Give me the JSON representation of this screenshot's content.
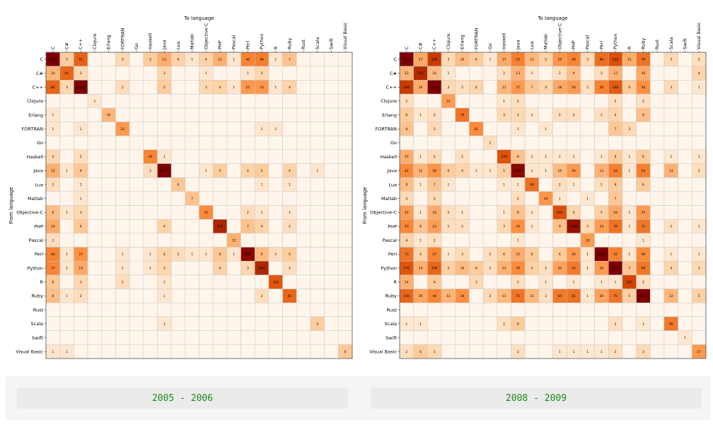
{
  "chart_data": [
    {
      "type": "heatmap",
      "title": "2005 - 2006",
      "xlabel": "To language",
      "ylabel": "From language",
      "colormap": [
        "#fff5eb",
        "#fdd0a2",
        "#fd8d3c",
        "#d94801",
        "#7f0000"
      ],
      "languages": [
        "C",
        "C#",
        "C++",
        "Clojure",
        "Erlang",
        "FORTRAN",
        "Go",
        "Haskell",
        "Java",
        "Lua",
        "Matlab",
        "Objective-C",
        "PHP",
        "Pascal",
        "Perl",
        "Python",
        "R",
        "Ruby",
        "Rust",
        "Scala",
        "Swift",
        "Visual Basic"
      ],
      "matrix": [
        [
          1000,
          5,
          91,
          0,
          0,
          3,
          0,
          5,
          13,
          4,
          1,
          4,
          12,
          1,
          40,
          46,
          1,
          7,
          0,
          0,
          0,
          0
        ],
        [
          10,
          81,
          3,
          0,
          0,
          0,
          0,
          0,
          3,
          0,
          0,
          1,
          0,
          0,
          1,
          3,
          0,
          0,
          0,
          0,
          0,
          0
        ],
        [
          86,
          3,
          1000,
          0,
          0,
          2,
          0,
          0,
          5,
          0,
          0,
          3,
          4,
          1,
          22,
          23,
          1,
          4,
          0,
          0,
          0,
          0
        ],
        [
          0,
          0,
          0,
          1,
          0,
          0,
          0,
          0,
          0,
          0,
          0,
          0,
          0,
          0,
          0,
          0,
          0,
          0,
          0,
          0,
          0,
          0
        ],
        [
          1,
          0,
          0,
          0,
          10,
          0,
          0,
          0,
          0,
          0,
          0,
          0,
          0,
          0,
          0,
          0,
          0,
          0,
          0,
          0,
          0,
          0
        ],
        [
          1,
          0,
          1,
          0,
          0,
          22,
          0,
          0,
          0,
          0,
          0,
          0,
          0,
          0,
          0,
          1,
          1,
          0,
          0,
          0,
          0,
          0
        ],
        [
          0,
          0,
          0,
          0,
          0,
          0,
          0,
          0,
          0,
          0,
          0,
          0,
          0,
          0,
          0,
          0,
          0,
          0,
          0,
          0,
          0,
          0
        ],
        [
          3,
          0,
          2,
          0,
          0,
          0,
          0,
          39,
          1,
          0,
          0,
          0,
          0,
          0,
          0,
          0,
          0,
          0,
          0,
          0,
          0,
          0
        ],
        [
          12,
          1,
          6,
          0,
          0,
          0,
          0,
          2,
          1000,
          0,
          0,
          1,
          5,
          0,
          4,
          5,
          0,
          4,
          0,
          1,
          0,
          0
        ],
        [
          2,
          0,
          1,
          0,
          0,
          0,
          0,
          0,
          0,
          6,
          0,
          0,
          0,
          0,
          0,
          1,
          0,
          1,
          0,
          0,
          0,
          0
        ],
        [
          0,
          0,
          1,
          0,
          0,
          0,
          0,
          0,
          0,
          0,
          7,
          0,
          0,
          0,
          0,
          0,
          0,
          0,
          0,
          0,
          0,
          0
        ],
        [
          8,
          1,
          3,
          0,
          0,
          0,
          0,
          0,
          0,
          0,
          0,
          32,
          0,
          0,
          2,
          1,
          0,
          1,
          0,
          0,
          0,
          0
        ],
        [
          14,
          0,
          6,
          0,
          0,
          0,
          0,
          0,
          4,
          0,
          0,
          0,
          400,
          0,
          7,
          4,
          0,
          2,
          0,
          0,
          0,
          0
        ],
        [
          2,
          0,
          0,
          0,
          0,
          0,
          0,
          0,
          0,
          0,
          0,
          0,
          0,
          12,
          0,
          0,
          0,
          0,
          0,
          0,
          0,
          0
        ],
        [
          40,
          1,
          27,
          0,
          0,
          1,
          0,
          1,
          4,
          2,
          1,
          1,
          6,
          1,
          800,
          9,
          2,
          5,
          0,
          0,
          0,
          0
        ],
        [
          37,
          1,
          14,
          0,
          0,
          1,
          0,
          1,
          3,
          0,
          0,
          0,
          4,
          0,
          3,
          400,
          0,
          2,
          0,
          0,
          0,
          0
        ],
        [
          6,
          0,
          3,
          0,
          0,
          2,
          0,
          0,
          1,
          0,
          0,
          0,
          0,
          0,
          0,
          0,
          122,
          0,
          0,
          0,
          0,
          0
        ],
        [
          8,
          1,
          2,
          0,
          0,
          0,
          0,
          0,
          1,
          0,
          0,
          0,
          0,
          0,
          0,
          2,
          0,
          83,
          0,
          0,
          0,
          0
        ],
        [
          0,
          0,
          0,
          0,
          0,
          0,
          0,
          0,
          0,
          0,
          0,
          0,
          0,
          0,
          0,
          0,
          0,
          0,
          0,
          0,
          0,
          0
        ],
        [
          0,
          0,
          0,
          0,
          0,
          0,
          0,
          0,
          1,
          0,
          0,
          0,
          0,
          0,
          0,
          0,
          0,
          0,
          0,
          5,
          0,
          0
        ],
        [
          0,
          0,
          0,
          0,
          0,
          0,
          0,
          0,
          0,
          0,
          0,
          0,
          0,
          0,
          0,
          0,
          0,
          0,
          0,
          0,
          0,
          0
        ],
        [
          1,
          1,
          0,
          0,
          0,
          0,
          0,
          0,
          0,
          0,
          0,
          0,
          0,
          0,
          0,
          0,
          0,
          0,
          0,
          0,
          0,
          6
        ]
      ]
    },
    {
      "type": "heatmap",
      "title": "2008 - 2009",
      "xlabel": "To language",
      "ylabel": "From language",
      "colormap": [
        "#fff5eb",
        "#fdd0a2",
        "#fd8d3c",
        "#d94801",
        "#7f0000"
      ],
      "languages": [
        "C",
        "C#",
        "C++",
        "Clojure",
        "Erlang",
        "FORTRAN",
        "Go",
        "Haskell",
        "Java",
        "Lua",
        "Matlab",
        "Objective-C",
        "PHP",
        "Pascal",
        "Perl",
        "Python",
        "R",
        "Ruby",
        "Rust",
        "Scala",
        "Swift",
        "Visual Basic"
      ],
      "matrix": [
        [
          1500,
          17,
          338,
          3,
          10,
          6,
          1,
          17,
          53,
          11,
          5,
          29,
          48,
          3,
          86,
          205,
          15,
          78,
          0,
          3,
          0,
          2
        ],
        [
          12,
          505,
          10,
          1,
          0,
          0,
          0,
          2,
          13,
          1,
          0,
          2,
          9,
          0,
          2,
          13,
          0,
          16,
          0,
          0,
          0,
          4
        ],
        [
          338,
          16,
          1500,
          3,
          2,
          4,
          0,
          11,
          27,
          7,
          4,
          18,
          26,
          2,
          50,
          146,
          6,
          36,
          0,
          3,
          0,
          1
        ],
        [
          2,
          0,
          0,
          23,
          0,
          0,
          0,
          1,
          2,
          0,
          0,
          0,
          0,
          0,
          0,
          2,
          0,
          2,
          0,
          0,
          0,
          0
        ],
        [
          6,
          1,
          2,
          0,
          74,
          0,
          0,
          3,
          3,
          1,
          0,
          2,
          2,
          0,
          2,
          4,
          0,
          9,
          0,
          0,
          0,
          0
        ],
        [
          8,
          0,
          3,
          0,
          0,
          41,
          0,
          0,
          1,
          0,
          1,
          0,
          0,
          0,
          0,
          7,
          3,
          0,
          0,
          0,
          0,
          0
        ],
        [
          0,
          0,
          0,
          0,
          0,
          0,
          2,
          0,
          0,
          0,
          0,
          0,
          0,
          0,
          0,
          0,
          0,
          0,
          0,
          0,
          0,
          0
        ],
        [
          15,
          1,
          3,
          0,
          2,
          0,
          0,
          179,
          8,
          1,
          1,
          1,
          1,
          0,
          1,
          6,
          1,
          6,
          0,
          1,
          0,
          1
        ],
        [
          42,
          12,
          30,
          6,
          4,
          1,
          1,
          5,
          1200,
          1,
          1,
          10,
          26,
          0,
          13,
          54,
          1,
          54,
          0,
          13,
          0,
          2
        ],
        [
          9,
          1,
          7,
          1,
          0,
          0,
          0,
          1,
          1,
          84,
          0,
          2,
          1,
          0,
          2,
          6,
          0,
          6,
          0,
          0,
          0,
          0
        ],
        [
          3,
          0,
          3,
          0,
          0,
          0,
          0,
          0,
          2,
          0,
          29,
          1,
          0,
          1,
          0,
          7,
          0,
          0,
          0,
          0,
          0,
          0
        ],
        [
          25,
          1,
          16,
          2,
          1,
          0,
          0,
          1,
          8,
          1,
          0,
          202,
          4,
          0,
          5,
          18,
          1,
          25,
          0,
          0,
          0,
          0
        ],
        [
          43,
          8,
          23,
          2,
          2,
          0,
          0,
          3,
          34,
          1,
          0,
          9,
          1000,
          3,
          24,
          78,
          1,
          71,
          0,
          2,
          0,
          1
        ],
        [
          4,
          1,
          2,
          0,
          0,
          0,
          0,
          0,
          1,
          0,
          0,
          0,
          0,
          26,
          0,
          0,
          0,
          1,
          0,
          0,
          0,
          0
        ],
        [
          73,
          4,
          47,
          1,
          3,
          0,
          2,
          6,
          15,
          6,
          0,
          6,
          26,
          1,
          1500,
          52,
          1,
          40,
          0,
          1,
          0,
          1
        ],
        [
          170,
          14,
          106,
          5,
          10,
          6,
          2,
          13,
          39,
          5,
          2,
          20,
          63,
          1,
          26,
          1500,
          7,
          69,
          0,
          4,
          0,
          3
        ],
        [
          14,
          0,
          6,
          0,
          0,
          3,
          0,
          0,
          2,
          0,
          1,
          0,
          1,
          0,
          1,
          1,
          265,
          2,
          0,
          0,
          0,
          0
        ],
        [
          104,
          19,
          46,
          12,
          34,
          0,
          3,
          11,
          75,
          11,
          2,
          64,
          81,
          1,
          20,
          75,
          5,
          1500,
          0,
          12,
          0,
          5
        ],
        [
          0,
          0,
          0,
          0,
          0,
          0,
          0,
          0,
          0,
          0,
          0,
          0,
          0,
          0,
          0,
          0,
          0,
          0,
          0,
          0,
          0,
          0
        ],
        [
          1,
          1,
          0,
          0,
          0,
          0,
          0,
          2,
          6,
          0,
          0,
          0,
          0,
          0,
          0,
          2,
          0,
          1,
          0,
          66,
          0,
          0
        ],
        [
          0,
          0,
          0,
          0,
          0,
          0,
          0,
          0,
          0,
          0,
          0,
          0,
          0,
          0,
          0,
          0,
          0,
          0,
          0,
          0,
          1,
          0
        ],
        [
          2,
          6,
          3,
          0,
          0,
          0,
          0,
          0,
          2,
          0,
          0,
          1,
          1,
          1,
          1,
          2,
          0,
          3,
          0,
          0,
          0,
          27
        ]
      ]
    }
  ]
}
